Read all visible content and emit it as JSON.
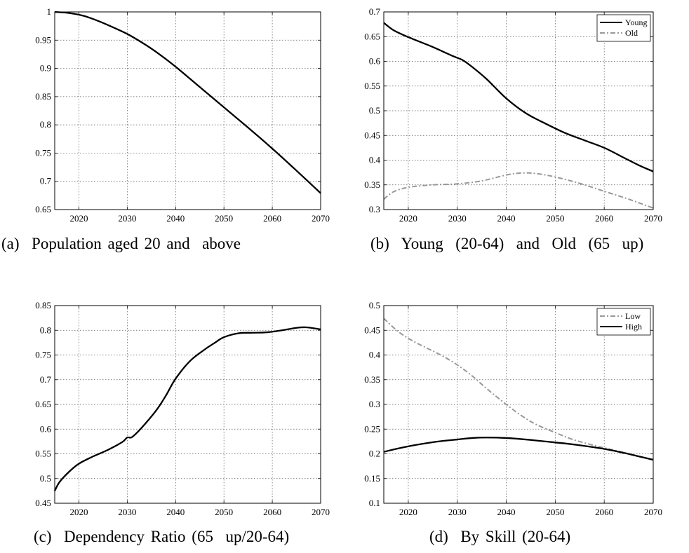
{
  "captions": {
    "a": "(a)  Population aged 20 and  above",
    "b": "(b)  Young  (20-64)  and  Old  (65  up)",
    "c": "(c)  Dependency Ratio (65  up/20-64)",
    "d": "(d)  By Skill (20-64)"
  },
  "chart_data": [
    {
      "type": "line",
      "id": "a",
      "title": "",
      "xlim": [
        2015,
        2070
      ],
      "ylim": [
        0.65,
        1
      ],
      "xticks": [
        2020,
        2030,
        2040,
        2050,
        2060,
        2070
      ],
      "yticks": [
        0.65,
        0.7,
        0.75,
        0.8,
        0.85,
        0.9,
        0.95,
        1
      ],
      "ytick_labels": [
        "0.65",
        "0.7",
        "0.75",
        "0.8",
        "0.85",
        "0.9",
        "0.95",
        "1"
      ],
      "grid": true,
      "legend": null,
      "series": [
        {
          "color": "#000000",
          "dash": "solid",
          "x": [
            2015,
            2018,
            2021,
            2024,
            2027,
            2030,
            2033,
            2036,
            2040,
            2045,
            2050,
            2055,
            2060,
            2065,
            2070
          ],
          "y": [
            1.0,
            0.998,
            0.993,
            0.984,
            0.973,
            0.961,
            0.946,
            0.929,
            0.903,
            0.867,
            0.831,
            0.795,
            0.758,
            0.719,
            0.679
          ]
        }
      ]
    },
    {
      "type": "line",
      "id": "b",
      "title": "",
      "xlim": [
        2015,
        2070
      ],
      "ylim": [
        0.3,
        0.7
      ],
      "xticks": [
        2020,
        2030,
        2040,
        2050,
        2060,
        2070
      ],
      "yticks": [
        0.3,
        0.35,
        0.4,
        0.45,
        0.5,
        0.55,
        0.6,
        0.65,
        0.7
      ],
      "ytick_labels": [
        "0.3",
        "0.35",
        "0.4",
        "0.45",
        "0.5",
        "0.55",
        "0.6",
        "0.65",
        "0.7"
      ],
      "grid": true,
      "legend": "top-right",
      "series": [
        {
          "name": "Young",
          "color": "#000000",
          "dash": "solid",
          "x": [
            2015,
            2017,
            2020,
            2025,
            2029,
            2031,
            2033,
            2036,
            2040,
            2044,
            2048,
            2052,
            2056,
            2060,
            2064,
            2067,
            2070
          ],
          "y": [
            0.678,
            0.663,
            0.649,
            0.629,
            0.611,
            0.603,
            0.589,
            0.564,
            0.525,
            0.495,
            0.474,
            0.455,
            0.44,
            0.425,
            0.405,
            0.39,
            0.377
          ]
        },
        {
          "name": "Old",
          "color": "#999999",
          "dash": "dashdot",
          "x": [
            2015,
            2017,
            2020,
            2025,
            2030,
            2035,
            2040,
            2043,
            2046,
            2050,
            2055,
            2060,
            2065,
            2070
          ],
          "y": [
            0.321,
            0.336,
            0.345,
            0.35,
            0.352,
            0.358,
            0.37,
            0.374,
            0.373,
            0.366,
            0.353,
            0.337,
            0.321,
            0.303
          ]
        }
      ]
    },
    {
      "type": "line",
      "id": "c",
      "title": "",
      "xlim": [
        2015,
        2070
      ],
      "ylim": [
        0.45,
        0.85
      ],
      "xticks": [
        2020,
        2030,
        2040,
        2050,
        2060,
        2070
      ],
      "yticks": [
        0.45,
        0.5,
        0.55,
        0.6,
        0.65,
        0.7,
        0.75,
        0.8,
        0.85
      ],
      "ytick_labels": [
        "0.45",
        "0.5",
        "0.55",
        "0.6",
        "0.65",
        "0.7",
        "0.75",
        "0.8",
        "0.85"
      ],
      "grid": true,
      "legend": null,
      "series": [
        {
          "color": "#000000",
          "dash": "solid",
          "x": [
            2015,
            2016,
            2018,
            2020,
            2023,
            2026,
            2029,
            2030,
            2031,
            2033,
            2036,
            2038,
            2040,
            2043,
            2046,
            2048,
            2050,
            2053,
            2056,
            2059,
            2062,
            2065,
            2067,
            2070
          ],
          "y": [
            0.475,
            0.493,
            0.514,
            0.53,
            0.545,
            0.558,
            0.574,
            0.583,
            0.584,
            0.603,
            0.638,
            0.668,
            0.702,
            0.738,
            0.761,
            0.774,
            0.786,
            0.794,
            0.795,
            0.796,
            0.8,
            0.805,
            0.806,
            0.802
          ]
        }
      ]
    },
    {
      "type": "line",
      "id": "d",
      "title": "",
      "xlim": [
        2015,
        2070
      ],
      "ylim": [
        0.1,
        0.5
      ],
      "xticks": [
        2020,
        2030,
        2040,
        2050,
        2060,
        2070
      ],
      "yticks": [
        0.1,
        0.15,
        0.2,
        0.25,
        0.3,
        0.35,
        0.4,
        0.45,
        0.5
      ],
      "ytick_labels": [
        "0.1",
        "0.15",
        "0.2",
        "0.25",
        "0.3",
        "0.35",
        "0.4",
        "0.45",
        "0.5"
      ],
      "grid": true,
      "legend": "top-right",
      "series": [
        {
          "name": "Low",
          "color": "#999999",
          "dash": "dashdot",
          "x": [
            2015,
            2018,
            2021,
            2024,
            2027,
            2030,
            2033,
            2036,
            2040,
            2043,
            2046,
            2050,
            2053,
            2056,
            2060,
            2063,
            2066,
            2070
          ],
          "y": [
            0.474,
            0.447,
            0.428,
            0.413,
            0.398,
            0.38,
            0.358,
            0.332,
            0.3,
            0.278,
            0.26,
            0.243,
            0.231,
            0.222,
            0.212,
            0.205,
            0.197,
            0.188
          ]
        },
        {
          "name": "High",
          "color": "#000000",
          "dash": "solid",
          "x": [
            2015,
            2018,
            2021,
            2024,
            2027,
            2030,
            2033,
            2036,
            2040,
            2044,
            2048,
            2052,
            2056,
            2060,
            2064,
            2067,
            2070
          ],
          "y": [
            0.204,
            0.211,
            0.217,
            0.222,
            0.226,
            0.229,
            0.232,
            0.233,
            0.232,
            0.229,
            0.225,
            0.221,
            0.216,
            0.21,
            0.202,
            0.195,
            0.188
          ]
        }
      ]
    }
  ]
}
